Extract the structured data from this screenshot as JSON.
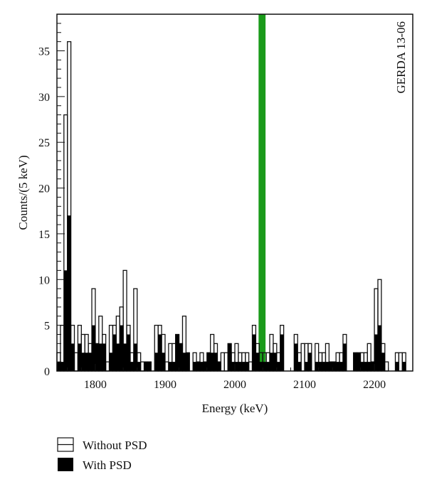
{
  "chart_data": {
    "type": "bar",
    "subtype": "histogram",
    "xlabel": "Energy (keV)",
    "ylabel": "Counts/(5 keV)",
    "annotation": "GERDA 13-06",
    "xlim": [
      1745,
      2255
    ],
    "ylim": [
      0,
      39
    ],
    "bin_width": 5,
    "x_ticks": [
      1800,
      1900,
      2000,
      2100,
      2200
    ],
    "y_ticks": [
      0,
      5,
      10,
      15,
      20,
      25,
      30,
      35
    ],
    "highlight_band": {
      "from": 2034,
      "to": 2044,
      "color": "#1a9a1a"
    },
    "series": [
      {
        "name": "Without PSD",
        "style": "outline",
        "values": [
          2,
          5,
          28,
          36,
          5,
          2,
          5,
          4,
          4,
          3,
          9,
          3,
          6,
          4,
          1,
          5,
          5,
          6,
          7,
          11,
          5,
          2,
          9,
          2,
          1,
          1,
          1,
          0,
          5,
          5,
          4,
          1,
          3,
          3,
          4,
          3,
          6,
          2,
          0,
          2,
          1,
          2,
          1,
          2,
          4,
          3,
          1,
          2,
          2,
          3,
          2,
          3,
          2,
          2,
          2,
          1,
          5,
          3,
          2,
          2,
          2,
          4,
          3,
          2,
          5,
          0,
          0,
          0,
          4,
          2,
          3,
          3,
          3,
          0,
          3,
          2,
          2,
          3,
          1,
          1,
          2,
          2,
          4,
          0,
          0,
          2,
          2,
          2,
          2,
          3,
          1,
          9,
          10,
          3,
          1,
          0,
          0,
          2,
          2,
          2,
          0,
          0
        ]
      },
      {
        "name": "With PSD",
        "style": "filled",
        "values": [
          1,
          1,
          11,
          17,
          3,
          0,
          3,
          2,
          2,
          2,
          5,
          3,
          3,
          3,
          0,
          2,
          4,
          3,
          5,
          3,
          4,
          1,
          3,
          1,
          0,
          1,
          1,
          0,
          2,
          4,
          2,
          0,
          1,
          1,
          4,
          3,
          2,
          2,
          0,
          1,
          1,
          1,
          1,
          2,
          2,
          2,
          1,
          0,
          0,
          3,
          1,
          1,
          1,
          1,
          1,
          0,
          4,
          2,
          1,
          1,
          1,
          2,
          2,
          1,
          4,
          0,
          0,
          0,
          3,
          1,
          0,
          1,
          2,
          0,
          1,
          1,
          1,
          1,
          1,
          1,
          1,
          1,
          3,
          0,
          0,
          2,
          2,
          1,
          1,
          1,
          1,
          4,
          5,
          2,
          0,
          0,
          0,
          1,
          0,
          1,
          0,
          0
        ]
      }
    ],
    "legend": {
      "placement": "bottom-left",
      "entries": [
        "Without PSD",
        "With PSD"
      ]
    }
  }
}
